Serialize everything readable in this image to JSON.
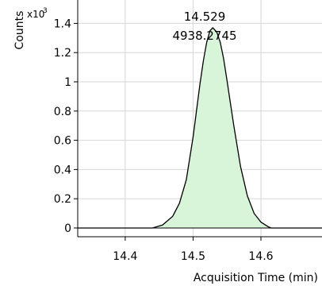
{
  "chart_data": {
    "type": "area",
    "xlabel": "Acquisition Time (min)",
    "ylabel": "Counts",
    "y_multiplier_label": "x10",
    "y_multiplier_exponent": "3",
    "xlim": [
      14.33,
      14.69
    ],
    "ylim": [
      -0.06,
      1.56
    ],
    "x_ticks": [
      14.4,
      14.5,
      14.6
    ],
    "x_tick_labels": [
      "14.4",
      "14.5",
      "14.6"
    ],
    "y_ticks": [
      0,
      0.2,
      0.4,
      0.6,
      0.8,
      1,
      1.2,
      1.4
    ],
    "y_tick_labels": [
      "0",
      "0.2",
      "0.4",
      "0.6",
      "0.8",
      "1",
      "1.2",
      "1.4"
    ],
    "grid": true,
    "peak": {
      "apex_time_label": "14.529",
      "area_label": "4938.2745",
      "apex_x": 14.529,
      "apex_y": 1.37
    },
    "series": [
      {
        "x": [
          14.33,
          14.44,
          14.455,
          14.47,
          14.48,
          14.49,
          14.5,
          14.51,
          14.515,
          14.52,
          14.525,
          14.529,
          14.535,
          14.54,
          14.545,
          14.55,
          14.56,
          14.57,
          14.58,
          14.59,
          14.6,
          14.61,
          14.615,
          14.69
        ],
        "values": [
          0,
          0,
          0.02,
          0.08,
          0.17,
          0.33,
          0.62,
          0.98,
          1.14,
          1.27,
          1.35,
          1.37,
          1.34,
          1.27,
          1.16,
          1.01,
          0.7,
          0.42,
          0.22,
          0.1,
          0.04,
          0.01,
          0,
          0
        ]
      }
    ],
    "colors": {
      "fill": "#d9f5d9",
      "line": "#000000",
      "grid": "#d6d6d6"
    }
  }
}
